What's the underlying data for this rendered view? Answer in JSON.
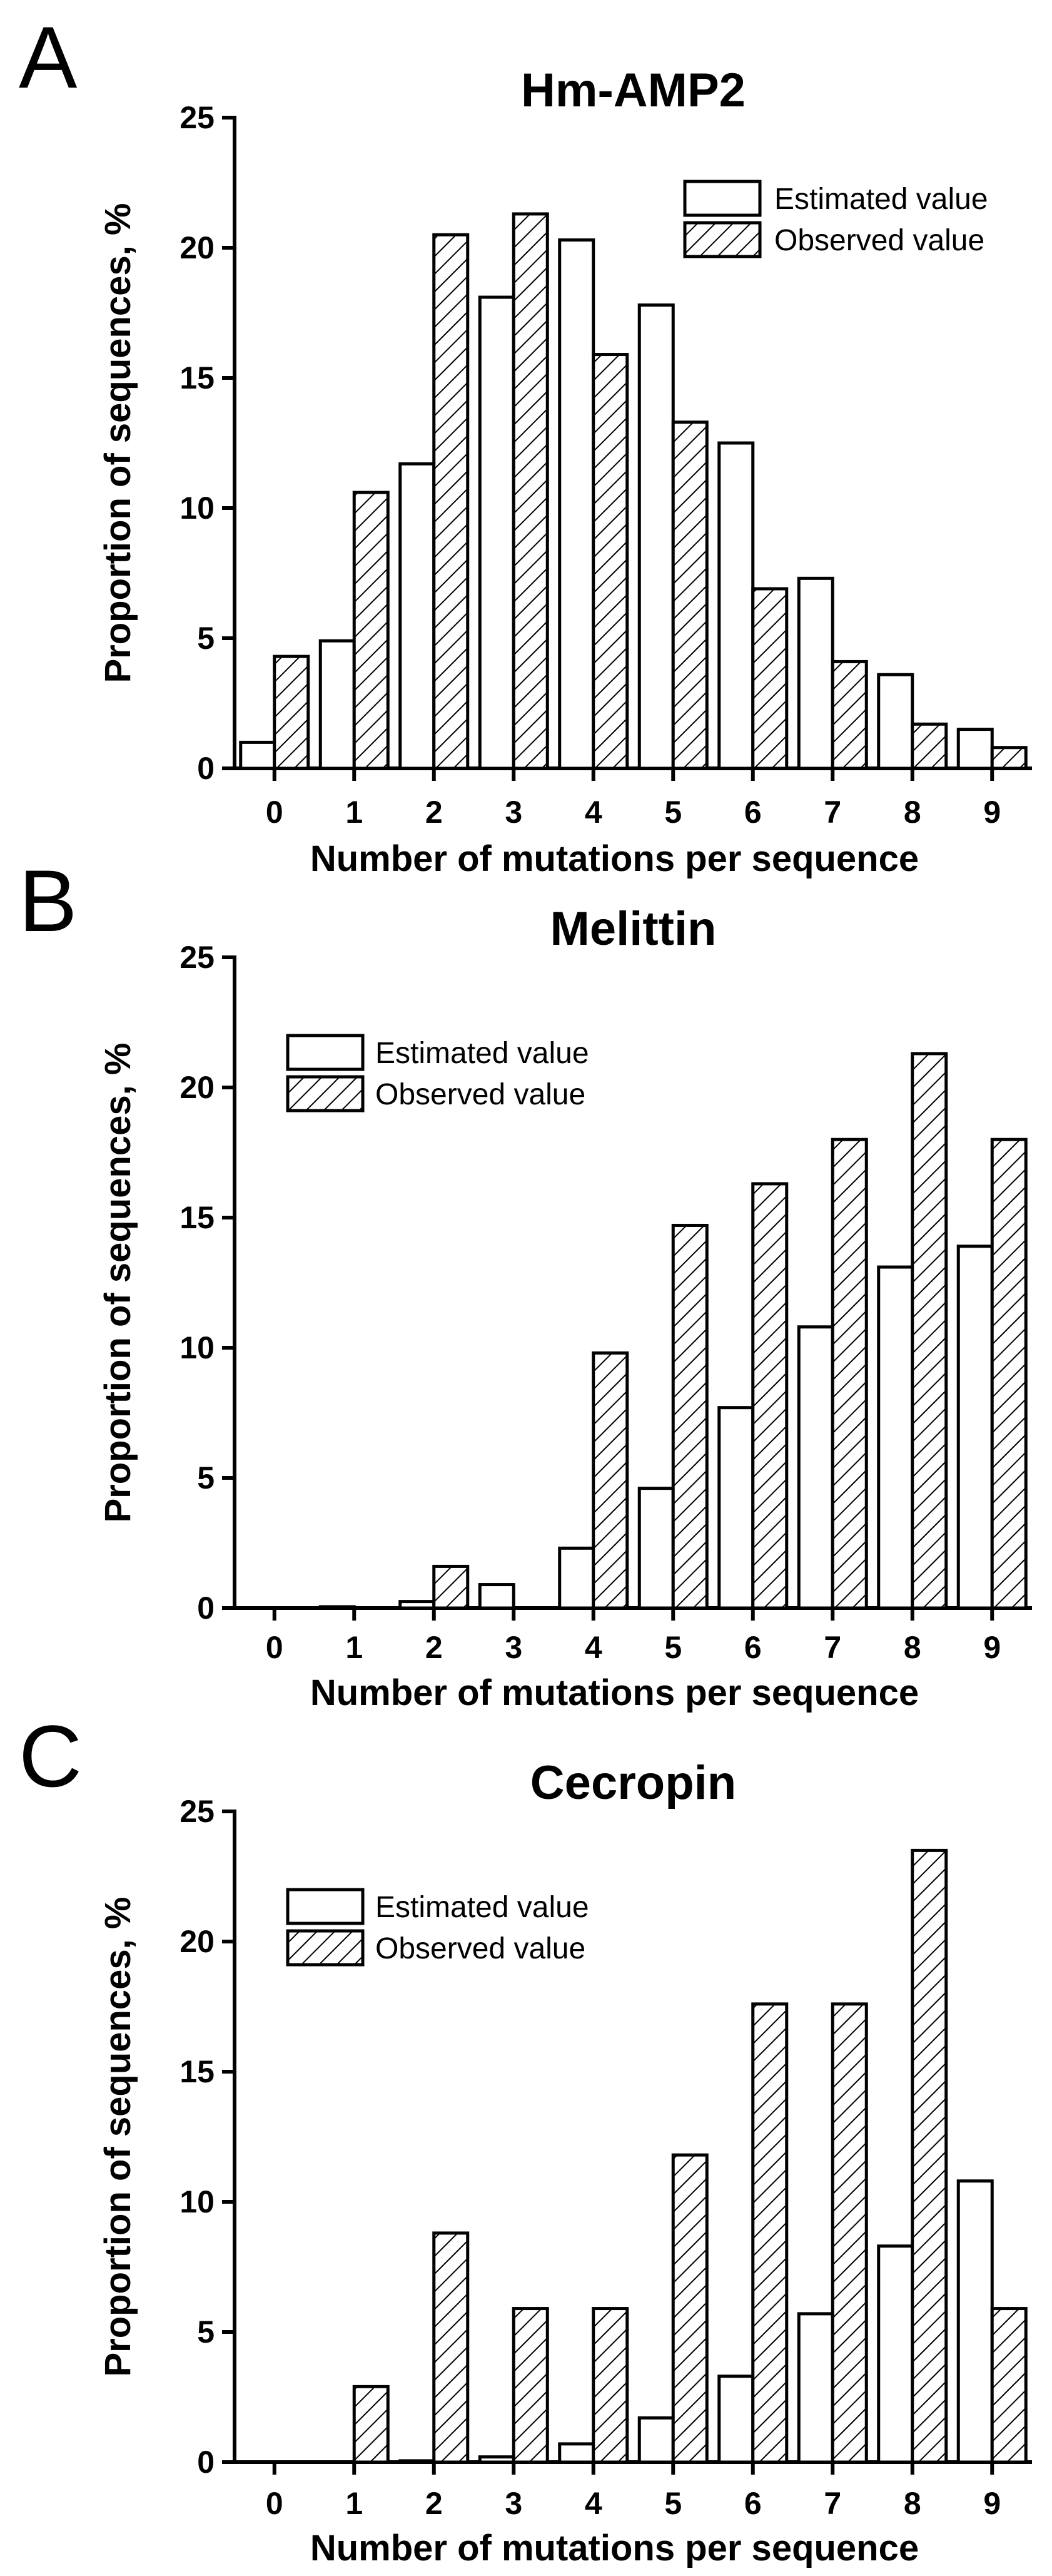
{
  "chart_data": [
    {
      "panel": "A",
      "type": "bar",
      "title": "Hm-AMP2",
      "xlabel": "Number of mutations per sequence",
      "ylabel": "Proportion of sequences, %",
      "categories": [
        "0",
        "1",
        "2",
        "3",
        "4",
        "5",
        "6",
        "7",
        "8",
        "9"
      ],
      "ylim": [
        0,
        25
      ],
      "yticks": [
        0,
        5,
        10,
        15,
        20,
        25
      ],
      "legend_position": "top-right",
      "series": [
        {
          "name": "Estimated value",
          "style": "open",
          "values": [
            1.0,
            4.9,
            11.7,
            18.1,
            20.3,
            17.8,
            12.5,
            7.3,
            3.6,
            1.5
          ]
        },
        {
          "name": "Observed value",
          "style": "hatched",
          "values": [
            4.3,
            10.6,
            20.5,
            21.3,
            15.9,
            13.3,
            6.9,
            4.1,
            1.7,
            0.8
          ]
        }
      ]
    },
    {
      "panel": "B",
      "type": "bar",
      "title": "Melittin",
      "xlabel": "Number of mutations per sequence",
      "ylabel": "Proportion of sequences, %",
      "categories": [
        "0",
        "1",
        "2",
        "3",
        "4",
        "5",
        "6",
        "7",
        "8",
        "9"
      ],
      "ylim": [
        0,
        25
      ],
      "yticks": [
        0,
        5,
        10,
        15,
        20,
        25
      ],
      "legend_position": "top-left",
      "series": [
        {
          "name": "Estimated value",
          "style": "open",
          "values": [
            0.0,
            0.05,
            0.25,
            0.9,
            2.3,
            4.6,
            7.7,
            10.8,
            13.1,
            13.9
          ]
        },
        {
          "name": "Observed value",
          "style": "hatched",
          "values": [
            0.0,
            0.0,
            1.6,
            0.0,
            9.8,
            14.7,
            16.3,
            18.0,
            21.3,
            18.0
          ]
        }
      ]
    },
    {
      "panel": "C",
      "type": "bar",
      "title": "Cecropin",
      "xlabel": "Number of mutations per sequence",
      "ylabel": "Proportion of sequences, %",
      "categories": [
        "0",
        "1",
        "2",
        "3",
        "4",
        "5",
        "6",
        "7",
        "8",
        "9"
      ],
      "ylim": [
        0,
        25
      ],
      "yticks": [
        0,
        5,
        10,
        15,
        20,
        25
      ],
      "legend_position": "top-left",
      "series": [
        {
          "name": "Estimated value",
          "style": "open",
          "values": [
            0.0,
            0.0,
            0.05,
            0.2,
            0.7,
            1.7,
            3.3,
            5.7,
            8.3,
            10.8
          ]
        },
        {
          "name": "Observed value",
          "style": "hatched",
          "values": [
            0.0,
            2.9,
            8.8,
            5.9,
            5.9,
            11.8,
            17.6,
            17.6,
            23.5,
            5.9
          ]
        }
      ]
    }
  ]
}
